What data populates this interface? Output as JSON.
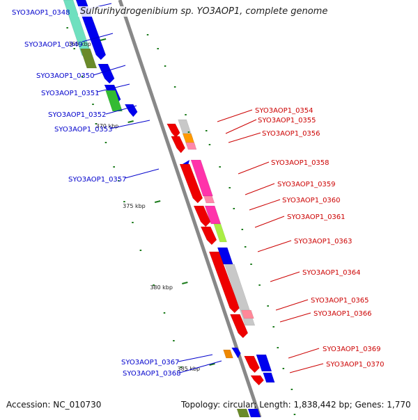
{
  "title": "Sulfurihydrogenibium sp. YO3AOP1, complete genome",
  "footer": {
    "accession": "Accession: NC_010730",
    "stats": "Topology: circular; Length: 1,838,442 bp; Genes: 1,770"
  },
  "colors": {
    "left_label": "#0000cc",
    "right_label": "#cc0000",
    "backbone": "#888888",
    "tick": "#1a7a1a"
  },
  "scale_labels": [
    "365 kbp",
    "370 kbp",
    "375 kbp",
    "380 kbp",
    "385 kbp"
  ],
  "left_genes": [
    "SYO3AOP1_0348",
    "SYO3AOP1_0349",
    "SYO3AOP1_0350",
    "SYO3AOP1_0351",
    "SYO3AOP1_0352",
    "SYO3AOP1_0353",
    "SYO3AOP1_0357",
    "SYO3AOP1_0367",
    "SYO3AOP1_0368"
  ],
  "right_genes": [
    "SYO3AOP1_0354",
    "SYO3AOP1_0355",
    "SYO3AOP1_0356",
    "SYO3AOP1_0358",
    "SYO3AOP1_0359",
    "SYO3AOP1_0360",
    "SYO3AOP1_0361",
    "SYO3AOP1_0363",
    "SYO3AOP1_0364",
    "SYO3AOP1_0365",
    "SYO3AOP1_0366",
    "SYO3AOP1_0369",
    "SYO3AOP1_0370"
  ]
}
